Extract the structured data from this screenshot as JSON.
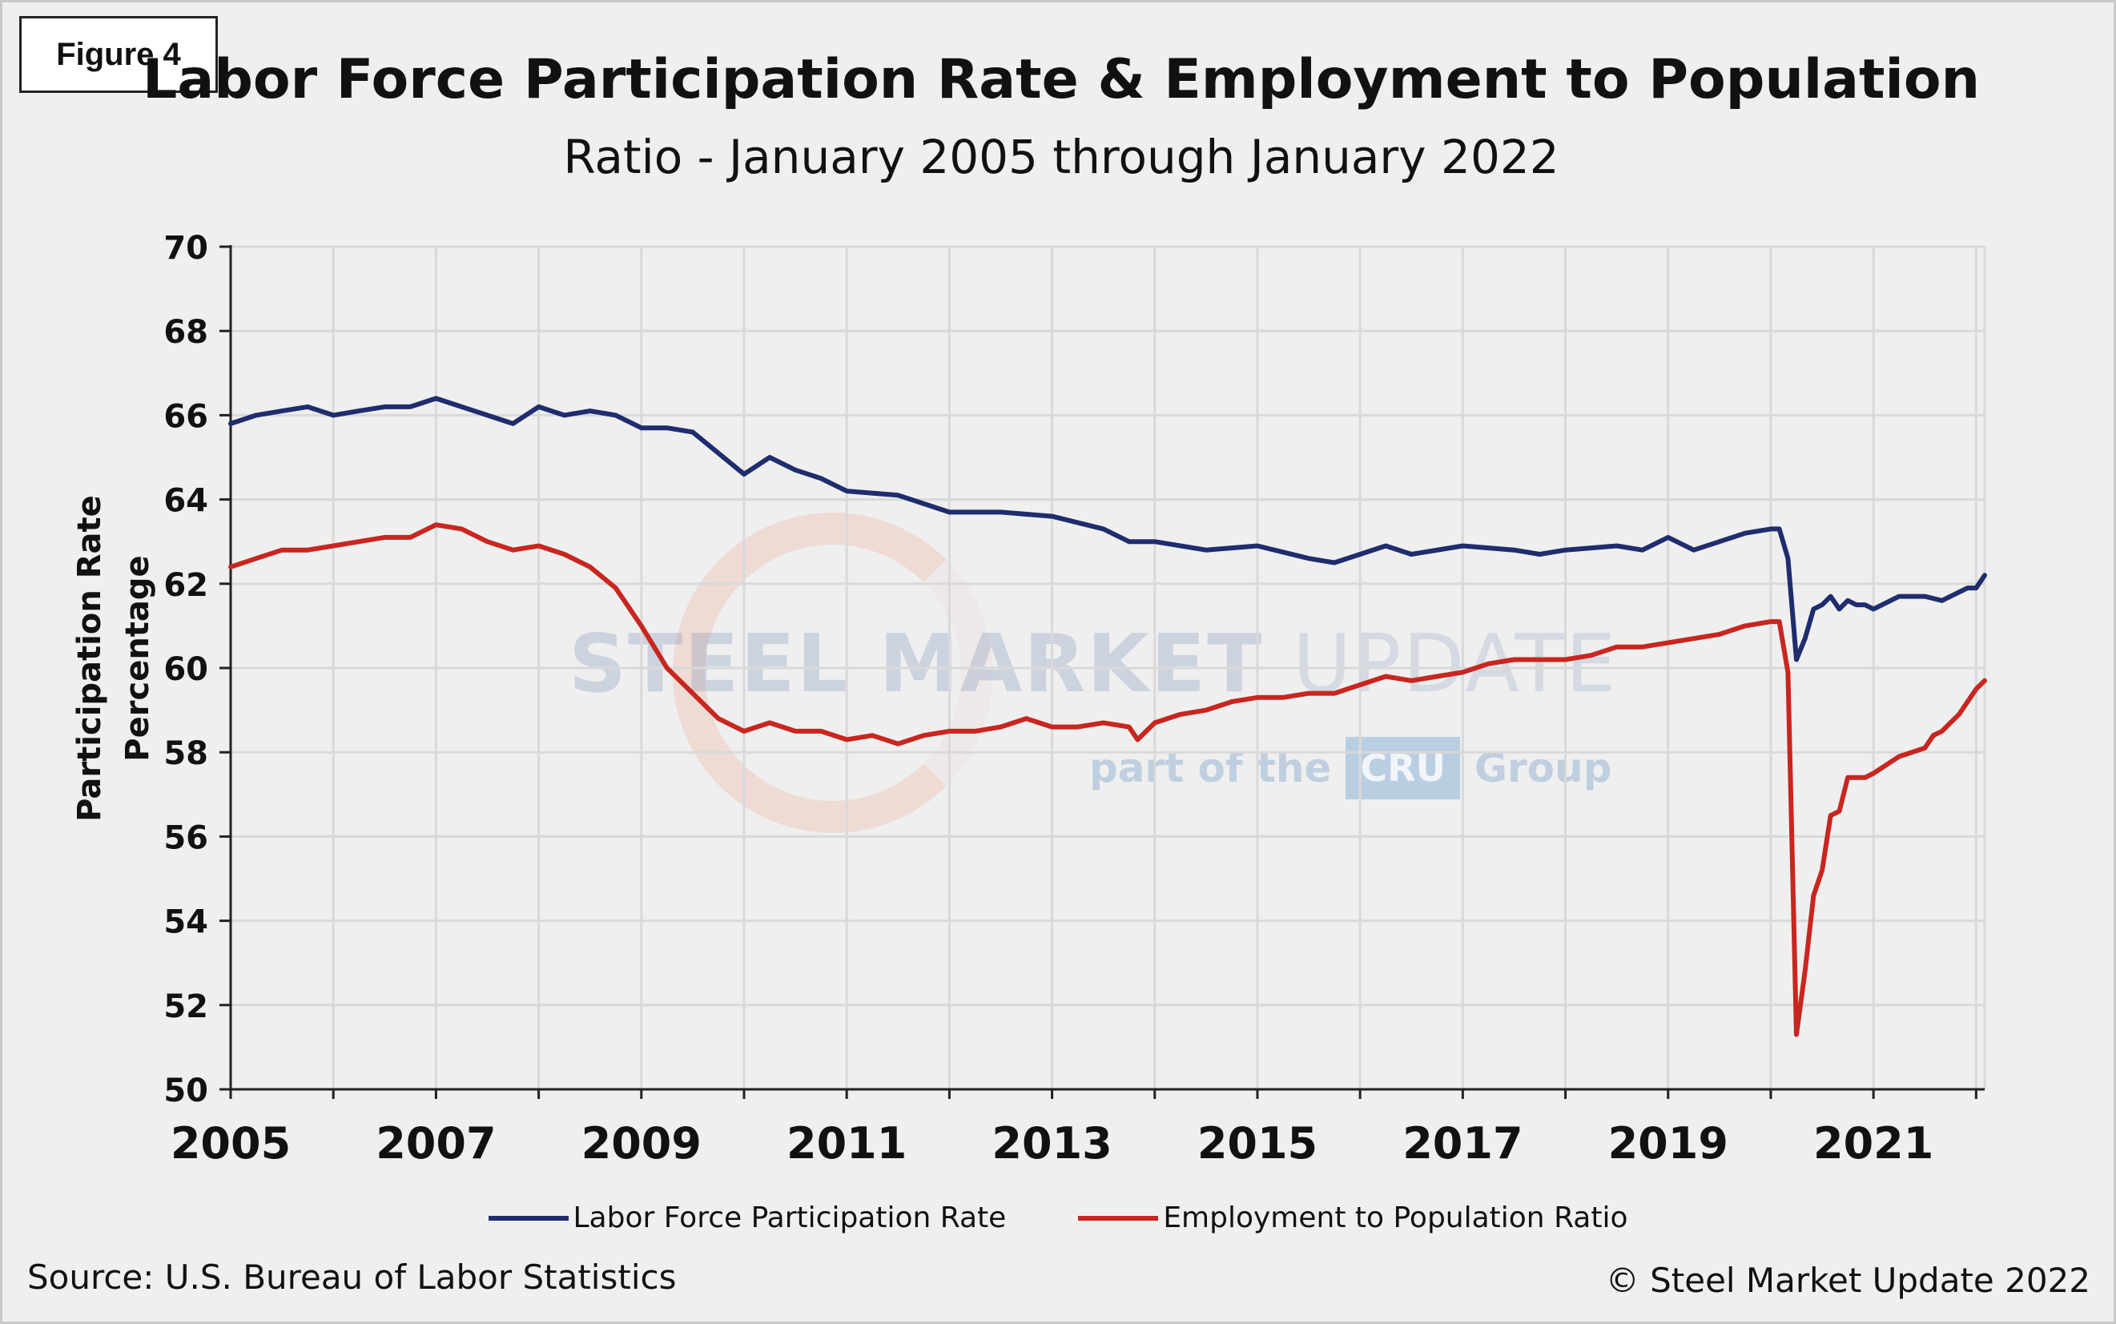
{
  "figure_label": "Figure 4",
  "source_note": "Source: U.S. Bureau  of Labor Statistics",
  "copyright": "© Steel Market Update 2022",
  "watermark": {
    "main_bold": "STEEL MARKET",
    "main_thin": "UPDATE",
    "sub_prefix": "part of the",
    "sub_logo": "CRU",
    "sub_suffix": "Group"
  },
  "colors": {
    "background": "#efefef",
    "grid": "#d9d9d9",
    "axis": "#222222",
    "lfpr": "#1f2d6e",
    "epop": "#c8261f"
  },
  "chart_data": {
    "type": "line",
    "title": "Labor Force Participation Rate & Employment to Population",
    "subtitle": "Ratio - January 2005 through January 2022",
    "xlabel": "",
    "ylabel": "Participation Rate Percentage",
    "xlim": [
      2005,
      2022.083
    ],
    "ylim": [
      50,
      70
    ],
    "x_ticks": [
      2005,
      2007,
      2009,
      2011,
      2013,
      2015,
      2017,
      2019,
      2021
    ],
    "y_ticks": [
      50,
      52,
      54,
      56,
      58,
      60,
      62,
      64,
      66,
      68,
      70
    ],
    "grid": true,
    "legend_position": "bottom-center",
    "series": [
      {
        "name": "Labor Force Participation Rate",
        "color": "#1f2d6e",
        "points": [
          [
            2005.0,
            65.8
          ],
          [
            2005.25,
            66.0
          ],
          [
            2005.5,
            66.1
          ],
          [
            2005.75,
            66.2
          ],
          [
            2006.0,
            66.0
          ],
          [
            2006.25,
            66.1
          ],
          [
            2006.5,
            66.2
          ],
          [
            2006.75,
            66.2
          ],
          [
            2007.0,
            66.4
          ],
          [
            2007.25,
            66.2
          ],
          [
            2007.5,
            66.0
          ],
          [
            2007.75,
            65.8
          ],
          [
            2008.0,
            66.2
          ],
          [
            2008.25,
            66.0
          ],
          [
            2008.5,
            66.1
          ],
          [
            2008.75,
            66.0
          ],
          [
            2009.0,
            65.7
          ],
          [
            2009.25,
            65.7
          ],
          [
            2009.5,
            65.6
          ],
          [
            2009.75,
            65.1
          ],
          [
            2010.0,
            64.6
          ],
          [
            2010.25,
            65.0
          ],
          [
            2010.5,
            64.7
          ],
          [
            2010.75,
            64.5
          ],
          [
            2011.0,
            64.2
          ],
          [
            2011.5,
            64.1
          ],
          [
            2012.0,
            63.7
          ],
          [
            2012.5,
            63.7
          ],
          [
            2013.0,
            63.6
          ],
          [
            2013.5,
            63.3
          ],
          [
            2013.75,
            63.0
          ],
          [
            2014.0,
            63.0
          ],
          [
            2014.5,
            62.8
          ],
          [
            2015.0,
            62.9
          ],
          [
            2015.5,
            62.6
          ],
          [
            2015.75,
            62.5
          ],
          [
            2016.0,
            62.7
          ],
          [
            2016.25,
            62.9
          ],
          [
            2016.5,
            62.7
          ],
          [
            2017.0,
            62.9
          ],
          [
            2017.5,
            62.8
          ],
          [
            2017.75,
            62.7
          ],
          [
            2018.0,
            62.8
          ],
          [
            2018.5,
            62.9
          ],
          [
            2018.75,
            62.8
          ],
          [
            2019.0,
            63.1
          ],
          [
            2019.25,
            62.8
          ],
          [
            2019.5,
            63.0
          ],
          [
            2019.75,
            63.2
          ],
          [
            2020.0,
            63.3
          ],
          [
            2020.083,
            63.3
          ],
          [
            2020.167,
            62.6
          ],
          [
            2020.25,
            60.2
          ],
          [
            2020.333,
            60.7
          ],
          [
            2020.417,
            61.4
          ],
          [
            2020.5,
            61.5
          ],
          [
            2020.583,
            61.7
          ],
          [
            2020.667,
            61.4
          ],
          [
            2020.75,
            61.6
          ],
          [
            2020.833,
            61.5
          ],
          [
            2020.917,
            61.5
          ],
          [
            2021.0,
            61.4
          ],
          [
            2021.25,
            61.7
          ],
          [
            2021.5,
            61.7
          ],
          [
            2021.667,
            61.6
          ],
          [
            2021.75,
            61.7
          ],
          [
            2021.833,
            61.8
          ],
          [
            2021.917,
            61.9
          ],
          [
            2022.0,
            61.9
          ],
          [
            2022.083,
            62.2
          ]
        ]
      },
      {
        "name": "Employment to Population Ratio",
        "color": "#c8261f",
        "points": [
          [
            2005.0,
            62.4
          ],
          [
            2005.25,
            62.6
          ],
          [
            2005.5,
            62.8
          ],
          [
            2005.75,
            62.8
          ],
          [
            2006.0,
            62.9
          ],
          [
            2006.25,
            63.0
          ],
          [
            2006.5,
            63.1
          ],
          [
            2006.75,
            63.1
          ],
          [
            2007.0,
            63.4
          ],
          [
            2007.25,
            63.3
          ],
          [
            2007.5,
            63.0
          ],
          [
            2007.75,
            62.8
          ],
          [
            2008.0,
            62.9
          ],
          [
            2008.25,
            62.7
          ],
          [
            2008.5,
            62.4
          ],
          [
            2008.75,
            61.9
          ],
          [
            2009.0,
            61.0
          ],
          [
            2009.25,
            60.0
          ],
          [
            2009.5,
            59.4
          ],
          [
            2009.75,
            58.8
          ],
          [
            2010.0,
            58.5
          ],
          [
            2010.25,
            58.7
          ],
          [
            2010.5,
            58.5
          ],
          [
            2010.75,
            58.5
          ],
          [
            2011.0,
            58.3
          ],
          [
            2011.25,
            58.4
          ],
          [
            2011.5,
            58.2
          ],
          [
            2011.75,
            58.4
          ],
          [
            2012.0,
            58.5
          ],
          [
            2012.25,
            58.5
          ],
          [
            2012.5,
            58.6
          ],
          [
            2012.75,
            58.8
          ],
          [
            2013.0,
            58.6
          ],
          [
            2013.25,
            58.6
          ],
          [
            2013.5,
            58.7
          ],
          [
            2013.75,
            58.6
          ],
          [
            2013.833,
            58.3
          ],
          [
            2014.0,
            58.7
          ],
          [
            2014.25,
            58.9
          ],
          [
            2014.5,
            59.0
          ],
          [
            2014.75,
            59.2
          ],
          [
            2015.0,
            59.3
          ],
          [
            2015.25,
            59.3
          ],
          [
            2015.5,
            59.4
          ],
          [
            2015.75,
            59.4
          ],
          [
            2016.0,
            59.6
          ],
          [
            2016.25,
            59.8
          ],
          [
            2016.5,
            59.7
          ],
          [
            2016.75,
            59.8
          ],
          [
            2017.0,
            59.9
          ],
          [
            2017.25,
            60.1
          ],
          [
            2017.5,
            60.2
          ],
          [
            2017.75,
            60.2
          ],
          [
            2018.0,
            60.2
          ],
          [
            2018.25,
            60.3
          ],
          [
            2018.5,
            60.5
          ],
          [
            2018.75,
            60.5
          ],
          [
            2019.0,
            60.6
          ],
          [
            2019.25,
            60.7
          ],
          [
            2019.5,
            60.8
          ],
          [
            2019.75,
            61.0
          ],
          [
            2020.0,
            61.1
          ],
          [
            2020.083,
            61.1
          ],
          [
            2020.167,
            59.9
          ],
          [
            2020.25,
            51.3
          ],
          [
            2020.333,
            52.8
          ],
          [
            2020.417,
            54.6
          ],
          [
            2020.5,
            55.2
          ],
          [
            2020.583,
            56.5
          ],
          [
            2020.667,
            56.6
          ],
          [
            2020.75,
            57.4
          ],
          [
            2020.833,
            57.4
          ],
          [
            2020.917,
            57.4
          ],
          [
            2021.0,
            57.5
          ],
          [
            2021.25,
            57.9
          ],
          [
            2021.5,
            58.1
          ],
          [
            2021.583,
            58.4
          ],
          [
            2021.667,
            58.5
          ],
          [
            2021.75,
            58.7
          ],
          [
            2021.833,
            58.9
          ],
          [
            2021.917,
            59.2
          ],
          [
            2022.0,
            59.5
          ],
          [
            2022.083,
            59.7
          ]
        ]
      }
    ]
  }
}
